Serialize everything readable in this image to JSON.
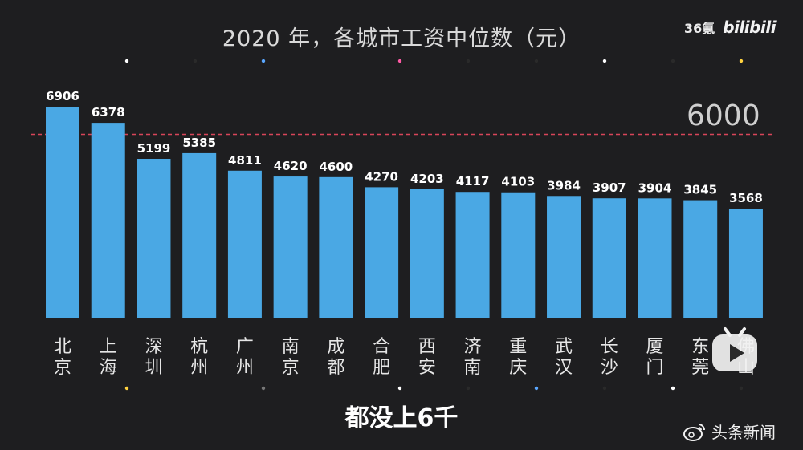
{
  "title": "2020 年，各城市工资中位数（元）",
  "brand": {
    "mark_36": "36氪",
    "bilibili": "bilibili"
  },
  "subtitle": "都没上6千",
  "watermark": {
    "text": "头条新闻",
    "icon": "weibo-icon"
  },
  "overlay_icon": "bilibili-tv-play-icon",
  "colors": {
    "background": "#1e1e20",
    "bar": "#4aa8e4",
    "reference_line": "#d9455a",
    "label": "#ffffff",
    "category": "#e6e6e6"
  },
  "chart_data": {
    "type": "bar",
    "title": "2020 年，各城市工资中位数（元）",
    "categories": [
      "北京",
      "上海",
      "深圳",
      "杭州",
      "广州",
      "南京",
      "成都",
      "合肥",
      "西安",
      "济南",
      "重庆",
      "武汉",
      "长沙",
      "厦门",
      "东莞",
      "佛山"
    ],
    "values": [
      6906,
      6378,
      5199,
      5385,
      4811,
      4620,
      4600,
      4270,
      4203,
      4117,
      4103,
      3984,
      3907,
      3904,
      3845,
      3568
    ],
    "reference_line": {
      "value": 6000,
      "label": "6000"
    },
    "xlabel": "",
    "ylabel": "",
    "ylim": [
      0,
      6906
    ],
    "grid": false,
    "legend": "none",
    "data_labels": true,
    "category_labels_vertical": true
  }
}
